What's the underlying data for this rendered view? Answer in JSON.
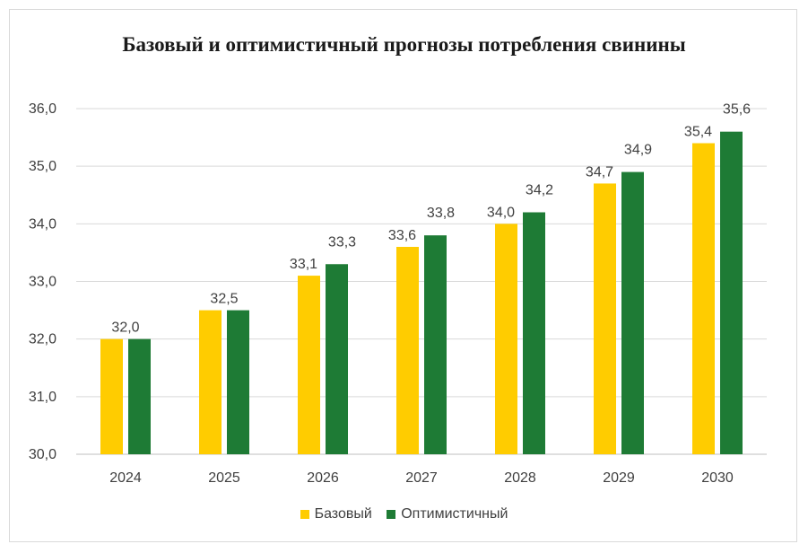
{
  "chart_data": {
    "type": "bar",
    "title": "Базовый и оптимистичный прогнозы потребления свинины",
    "categories": [
      "2024",
      "2025",
      "2026",
      "2027",
      "2028",
      "2029",
      "2030"
    ],
    "series": [
      {
        "name": "Базовый",
        "color": "#FFCC00",
        "values": [
          32.0,
          32.5,
          33.1,
          33.6,
          34.0,
          34.7,
          35.4
        ],
        "labels": [
          "32,0",
          "32,5",
          "33,1",
          "33,6",
          "34,0",
          "34,7",
          "35,4"
        ]
      },
      {
        "name": "Оптимистичный",
        "color": "#1E7B35",
        "values": [
          32.0,
          32.5,
          33.3,
          33.8,
          34.2,
          34.9,
          35.6
        ],
        "labels": [
          "",
          "",
          "33,3",
          "33,8",
          "34,2",
          "34,9",
          "35,6"
        ]
      }
    ],
    "ylim": [
      30.0,
      36.0
    ],
    "yticks": [
      "30,0",
      "31,0",
      "32,0",
      "33,0",
      "34,0",
      "35,0",
      "36,0"
    ],
    "grid": true,
    "legend_position": "bottom",
    "xlabel": "",
    "ylabel": ""
  }
}
